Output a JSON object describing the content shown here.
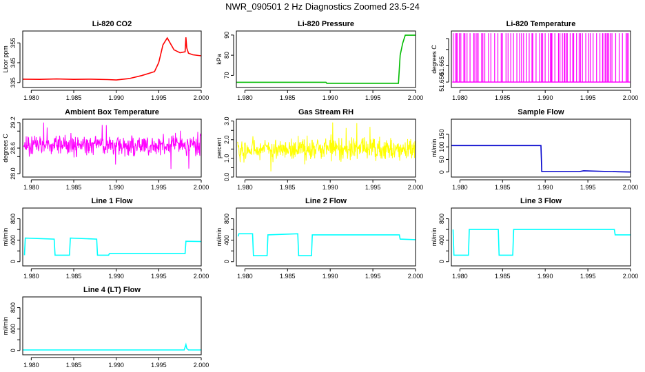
{
  "page_title": "NWR_090501  2 Hz Diagnostics Zoomed 23.5-24",
  "chart_data": [
    {
      "type": "line",
      "title": "Li-820 CO2",
      "ylabel": "Licor ppm",
      "color": "#ff0000",
      "ylim": [
        332.5,
        361
      ],
      "yticks": [
        335,
        345,
        355
      ],
      "xlim": [
        1.979,
        2.0
      ],
      "xticks": [
        "1.980",
        "1.985",
        "1.990",
        "1.995",
        "2.000"
      ],
      "series": [
        {
          "x": [
            1.979,
            1.981,
            1.983,
            1.985,
            1.987,
            1.989,
            1.99,
            1.9915,
            1.993,
            1.9945,
            1.995,
            1.9955,
            1.996,
            1.9968,
            1.9975,
            1.9981,
            1.9982,
            1.9983,
            1.9985,
            1.999,
            2.0
          ],
          "y": [
            336.7,
            336.6,
            336.8,
            336.6,
            336.7,
            336.5,
            336.3,
            337.0,
            338.5,
            340.5,
            345.0,
            354.0,
            357.5,
            351.5,
            350.0,
            350.5,
            357.8,
            352.5,
            349.8,
            349.0,
            348.5
          ]
        }
      ]
    },
    {
      "type": "line",
      "title": "Li-820 Pressure",
      "ylabel": "kPa",
      "color": "#00bb00",
      "ylim": [
        64,
        92
      ],
      "yticks": [
        70,
        80,
        90
      ],
      "xlim": [
        1.979,
        2.0
      ],
      "xticks": [
        "1.980",
        "1.985",
        "1.990",
        "1.995",
        "2.000"
      ],
      "series": [
        {
          "x": [
            1.979,
            1.9895,
            1.9896,
            1.998,
            1.9982,
            1.9985,
            1.9988,
            2.0
          ],
          "y": [
            66.6,
            66.6,
            66.1,
            66.1,
            80.0,
            86.0,
            89.9,
            89.9
          ]
        }
      ]
    },
    {
      "type": "line",
      "title": "Li-820 Temperature",
      "ylabel": "degrees C",
      "color": "#ff00ff",
      "ylim": [
        51.645,
        51.697
      ],
      "yticks": [
        51.65,
        51.665
      ],
      "ytick_labels": [
        "51.650",
        "51.665"
      ],
      "extra_ticks": [
        51.68,
        51.69
      ],
      "xlim": [
        1.979,
        2.0
      ],
      "xticks": [
        "1.980",
        "1.985",
        "1.990",
        "1.995",
        "2.000"
      ],
      "levels": [
        51.65,
        51.695
      ]
    },
    {
      "type": "line",
      "title": "Ambient Box Temperature",
      "ylabel": "degrees C",
      "color": "#ff00ff",
      "ylim": [
        27.92,
        29.28
      ],
      "yticks": [
        28.0,
        28.6,
        29.2
      ],
      "ytick_labels": [
        "28.0",
        "28.6",
        "29.2"
      ],
      "extra_ticks": [
        28.4,
        29.0
      ],
      "xlim": [
        1.979,
        2.0
      ],
      "xticks": [
        "1.980",
        "1.985",
        "1.990",
        "1.995",
        "2.000"
      ],
      "noise": {
        "center": 28.67,
        "spread": 0.17,
        "min": 27.95,
        "max": 29.2
      }
    },
    {
      "type": "line",
      "title": "Gas Stream RH",
      "ylabel": "percent",
      "color": "#ffff00",
      "ylim": [
        0,
        3.1
      ],
      "yticks": [
        0,
        1,
        2,
        3
      ],
      "ytick_labels": [
        "0.0",
        "1.0",
        "2.0",
        "3.0"
      ],
      "extra_ticks": [
        0.5,
        1.5,
        2.5
      ],
      "xlim": [
        1.979,
        2.0
      ],
      "xticks": [
        "1.980",
        "1.985",
        "1.990",
        "1.995",
        "2.000"
      ],
      "noise": {
        "center": 1.5,
        "spread": 0.42,
        "min": 0.1,
        "max": 3.15
      }
    },
    {
      "type": "line",
      "title": "Sample Flow",
      "ylabel": "ml/min",
      "color": "#0000cc",
      "ylim": [
        -20,
        210
      ],
      "yticks": [
        0,
        50,
        100,
        150
      ],
      "xlim": [
        1.979,
        2.0
      ],
      "xticks": [
        "1.980",
        "1.985",
        "1.990",
        "1.995",
        "2.000"
      ],
      "series": [
        {
          "x": [
            1.979,
            1.9895,
            1.9896,
            1.994,
            1.9945,
            1.9985,
            2.0
          ],
          "y": [
            105,
            105,
            2,
            2,
            5,
            1,
            0
          ]
        }
      ]
    },
    {
      "type": "line",
      "title": "Line 1 Flow",
      "ylabel": "ml/min",
      "color": "#00ffff",
      "ylim": [
        -80,
        1000
      ],
      "yticks": [
        0,
        400,
        800
      ],
      "extra_ticks": [
        200,
        600
      ],
      "xlim": [
        1.979,
        2.0
      ],
      "xticks": [
        "1.980",
        "1.985",
        "1.990",
        "1.995",
        "2.000"
      ],
      "series": [
        {
          "x": [
            1.9792,
            1.9793,
            1.9827,
            1.9828,
            1.9845,
            1.9846,
            1.9877,
            1.9878,
            1.9891,
            1.9892,
            1.9981,
            1.9982,
            2.0
          ],
          "y": [
            120,
            440,
            420,
            120,
            120,
            440,
            420,
            120,
            120,
            150,
            150,
            380,
            375
          ]
        }
      ]
    },
    {
      "type": "line",
      "title": "Line 2 Flow",
      "ylabel": "ml/min",
      "color": "#00ffff",
      "ylim": [
        -80,
        1000
      ],
      "yticks": [
        0,
        400,
        800
      ],
      "extra_ticks": [
        200,
        600
      ],
      "xlim": [
        1.979,
        2.0
      ],
      "xticks": [
        "1.980",
        "1.985",
        "1.990",
        "1.995",
        "2.000"
      ],
      "series": [
        {
          "x": [
            1.9792,
            1.9793,
            1.9809,
            1.981,
            1.9826,
            1.9827,
            1.9862,
            1.9863,
            1.9878,
            1.9879,
            1.9981,
            1.9982,
            2.0
          ],
          "y": [
            470,
            520,
            520,
            110,
            110,
            500,
            520,
            110,
            110,
            500,
            500,
            420,
            410
          ]
        }
      ]
    },
    {
      "type": "line",
      "title": "Line 3 Flow",
      "ylabel": "ml/min",
      "color": "#00ffff",
      "ylim": [
        -80,
        1000
      ],
      "yticks": [
        0,
        400,
        800
      ],
      "extra_ticks": [
        200,
        600
      ],
      "xlim": [
        1.979,
        2.0
      ],
      "xticks": [
        "1.980",
        "1.985",
        "1.990",
        "1.995",
        "2.000"
      ],
      "series": [
        {
          "x": [
            1.9792,
            1.9793,
            1.9794,
            1.981,
            1.9811,
            1.9845,
            1.9846,
            1.9862,
            1.9863,
            1.9981,
            1.9982,
            2.0
          ],
          "y": [
            600,
            120,
            120,
            120,
            600,
            600,
            120,
            120,
            600,
            600,
            500,
            500
          ]
        }
      ]
    },
    {
      "type": "line",
      "title": "Line 4 (LT) Flow",
      "ylabel": "ml/min",
      "color": "#00ffff",
      "ylim": [
        -80,
        1000
      ],
      "yticks": [
        0,
        400,
        800
      ],
      "extra_ticks": [
        200,
        600
      ],
      "xlim": [
        1.979,
        2.0
      ],
      "xticks": [
        "1.980",
        "1.985",
        "1.990",
        "1.995",
        "2.000"
      ],
      "series": [
        {
          "x": [
            1.979,
            1.998,
            1.9982,
            1.9983,
            1.9985,
            1.9987,
            2.0
          ],
          "y": [
            10,
            10,
            110,
            40,
            10,
            10,
            10
          ]
        }
      ]
    }
  ]
}
